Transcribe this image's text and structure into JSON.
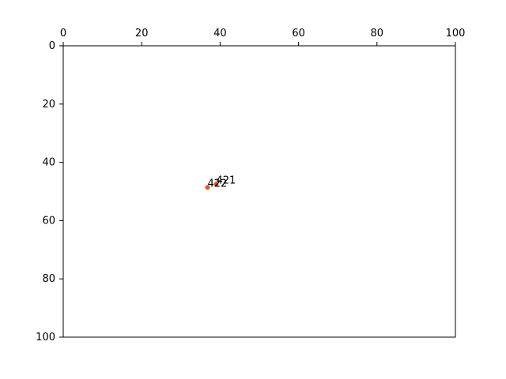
{
  "chart_data": {
    "type": "scatter",
    "title": "",
    "xlabel": "",
    "ylabel": "",
    "xlim": [
      0,
      100
    ],
    "ylim": [
      100,
      0
    ],
    "x_axis_position": "top",
    "y_axis_inverted": true,
    "grid": false,
    "legend": "none",
    "x_ticks": [
      0,
      20,
      40,
      60,
      80,
      100
    ],
    "y_ticks": [
      0,
      20,
      40,
      60,
      80,
      100
    ],
    "x_tick_labels": [
      "0",
      "20",
      "40",
      "60",
      "80",
      "100"
    ],
    "y_tick_labels": [
      "0",
      "20",
      "40",
      "60",
      "80",
      "100"
    ],
    "point_color": "#e8541e",
    "points": [
      {
        "x": 39,
        "y": 47.5,
        "label": "421"
      },
      {
        "x": 36.8,
        "y": 48.6,
        "label": "422"
      }
    ]
  }
}
